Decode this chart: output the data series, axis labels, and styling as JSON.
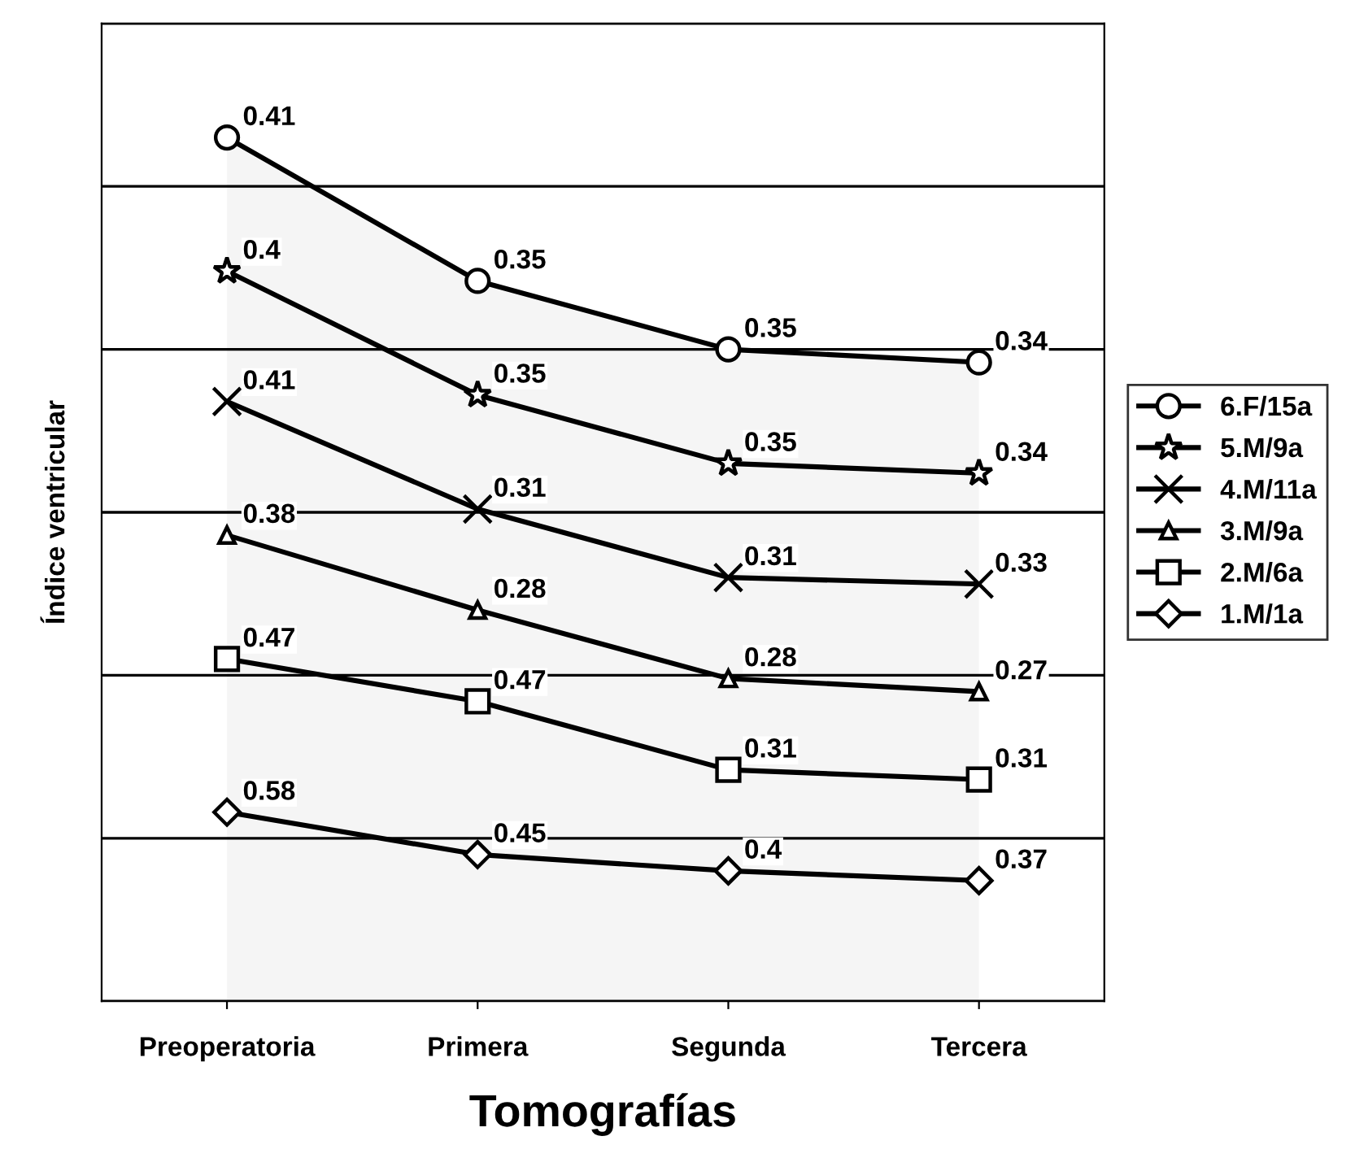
{
  "chart_data": {
    "type": "area",
    "stacked": true,
    "ylabel": "Índice ventricular",
    "xlabel": "Tomografías",
    "categories": [
      "Preoperatoria",
      "Primera",
      "Segunda",
      "Tercera"
    ],
    "ylim": [
      0,
      3
    ],
    "yticks": [
      {
        "value": 0,
        "label": null
      },
      {
        "value": 0.5,
        "label": null
      },
      {
        "value": 1,
        "label": null
      },
      {
        "value": 1.5,
        "label": null
      },
      {
        "value": 2,
        "label": null
      },
      {
        "value": 2.5,
        "label": null
      },
      {
        "value": 3,
        "label": null
      }
    ],
    "tick_labels": "x",
    "grid": "y",
    "legend": "right",
    "data_labels": true,
    "series": [
      {
        "name": "1.M/1a",
        "color": "#000000",
        "marker": "diamond",
        "values": [
          0.58,
          0.45,
          0.4,
          0.37
        ]
      },
      {
        "name": "2.M/6a",
        "color": "#000000",
        "marker": "square",
        "values": [
          0.47,
          0.47,
          0.31,
          0.31
        ]
      },
      {
        "name": "3.M/9a",
        "color": "#000000",
        "marker": "triangle",
        "values": [
          0.38,
          0.28,
          0.28,
          0.27
        ]
      },
      {
        "name": "4.M/11a",
        "color": "#000000",
        "marker": "cross",
        "values": [
          0.41,
          0.31,
          0.31,
          0.33
        ]
      },
      {
        "name": "5.M/9a",
        "color": "#000000",
        "marker": "star",
        "values": [
          0.4,
          0.35,
          0.35,
          0.34
        ]
      },
      {
        "name": "6.F/15a",
        "color": "#000000",
        "marker": "circle",
        "values": [
          0.41,
          0.35,
          0.35,
          0.34
        ]
      }
    ]
  }
}
